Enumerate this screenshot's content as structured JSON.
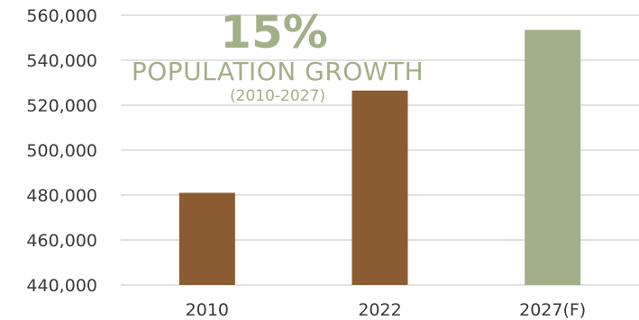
{
  "headline": {
    "value": "15%",
    "label": "POPULATION GROWTH",
    "period": "(2010-2027)"
  },
  "colors": {
    "actual": "#8b5c32",
    "forecast": "#a3af87",
    "grid": "#d9d9d9",
    "text": "#3a3a3a"
  },
  "chart_data": {
    "type": "bar",
    "title": "",
    "xlabel": "",
    "ylabel": "",
    "categories": [
      "2010",
      "2022",
      "2027(F)"
    ],
    "values": [
      481000,
      526500,
      553500
    ],
    "forecast_index": 2,
    "ylim": [
      440000,
      560000
    ],
    "yticks": [
      440000,
      460000,
      480000,
      500000,
      520000,
      540000,
      560000
    ],
    "ytick_labels": [
      "440,000",
      "460,000",
      "480,000",
      "500,000",
      "520,000",
      "540,000",
      "560,000"
    ],
    "grid": true,
    "legend": "none"
  }
}
